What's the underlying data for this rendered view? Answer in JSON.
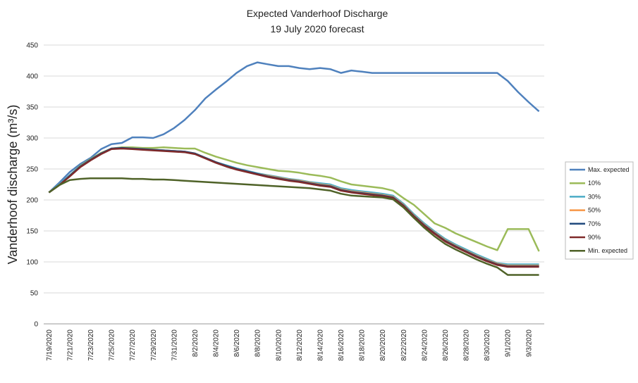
{
  "chart_data": {
    "type": "line",
    "title": "Expected Vanderhoof Discharge",
    "subtitle": "19 July 2020 forecast",
    "y_label": "Vanderhoof discharge (m³/s)",
    "categories": [
      "7/19/2020",
      null,
      "7/21/2020",
      null,
      "7/23/2020",
      null,
      "7/25/2020",
      null,
      "7/27/2020",
      null,
      "7/29/2020",
      null,
      "7/31/2020",
      null,
      "8/2/2020",
      null,
      "8/4/2020",
      null,
      "8/6/2020",
      null,
      "8/8/2020",
      null,
      "8/10/2020",
      null,
      "8/12/2020",
      null,
      "8/14/2020",
      null,
      "8/16/2020",
      null,
      "8/18/2020",
      null,
      "8/20/2020",
      null,
      "8/22/2020",
      null,
      "8/24/2020",
      null,
      "8/26/2020",
      null,
      "8/28/2020",
      null,
      "8/30/2020",
      null,
      "9/1/2020",
      null,
      "9/3/2020",
      null
    ],
    "series": [
      {
        "name": "Max. expected",
        "color": "#4f81bd",
        "values": [
          212,
          228,
          245,
          258,
          268,
          282,
          290,
          292,
          301,
          301,
          300,
          306,
          316,
          329,
          345,
          364,
          378,
          391,
          405,
          416,
          422,
          419,
          416,
          416,
          413,
          411,
          413,
          411,
          405,
          409,
          407,
          405,
          405,
          405,
          405,
          405,
          405,
          405,
          405,
          405,
          405,
          405,
          405,
          405,
          392,
          374,
          358,
          343
        ]
      },
      {
        "name": "10%",
        "color": "#9bbb59",
        "values": [
          212,
          225,
          240,
          255,
          266,
          276,
          283,
          285,
          285,
          284,
          284,
          285,
          284,
          283,
          283,
          276,
          270,
          265,
          260,
          256,
          253,
          250,
          247,
          246,
          244,
          241,
          239,
          236,
          230,
          225,
          223,
          221,
          219,
          215,
          203,
          192,
          177,
          162,
          155,
          146,
          139,
          132,
          125,
          119,
          153,
          153,
          153,
          117
        ]
      },
      {
        "name": "30%",
        "color": "#4bacc6",
        "values": [
          212,
          225,
          240,
          254,
          265,
          275,
          283,
          284,
          283,
          282,
          281,
          280,
          279,
          278,
          275,
          268,
          261,
          256,
          251,
          247,
          243,
          240,
          237,
          234,
          232,
          229,
          227,
          225,
          219,
          216,
          214,
          212,
          210,
          207,
          194,
          177,
          162,
          149,
          137,
          128,
          120,
          112,
          105,
          98,
          96,
          96,
          96,
          96
        ]
      },
      {
        "name": "50%",
        "color": "#f79646",
        "values": [
          212,
          224,
          239,
          254,
          265,
          275,
          283,
          284,
          283,
          282,
          281,
          280,
          279,
          278,
          275,
          268,
          261,
          255,
          250,
          246,
          242,
          239,
          236,
          233,
          231,
          228,
          225,
          223,
          217,
          214,
          212,
          210,
          208,
          205,
          192,
          175,
          160,
          147,
          135,
          126,
          118,
          110,
          103,
          97,
          94,
          94,
          94,
          94
        ]
      },
      {
        "name": "70%",
        "color": "#1f497d",
        "values": [
          212,
          224,
          239,
          254,
          265,
          275,
          283,
          284,
          283,
          282,
          281,
          280,
          279,
          278,
          275,
          268,
          261,
          255,
          250,
          246,
          242,
          238,
          235,
          232,
          230,
          227,
          224,
          222,
          216,
          213,
          211,
          209,
          207,
          204,
          191,
          174,
          159,
          146,
          134,
          125,
          117,
          109,
          102,
          96,
          93,
          93,
          93,
          93
        ]
      },
      {
        "name": "90%",
        "color": "#7f2a2a",
        "values": [
          212,
          224,
          238,
          253,
          264,
          274,
          282,
          283,
          282,
          281,
          280,
          279,
          278,
          277,
          274,
          267,
          260,
          254,
          249,
          245,
          241,
          237,
          234,
          231,
          229,
          226,
          223,
          221,
          215,
          212,
          210,
          208,
          206,
          203,
          190,
          173,
          158,
          145,
          133,
          124,
          116,
          108,
          101,
          95,
          92,
          92,
          92,
          92
        ]
      },
      {
        "name": "Min. expected",
        "color": "#4f6228",
        "values": [
          212,
          224,
          232,
          234,
          235,
          235,
          235,
          235,
          234,
          234,
          233,
          233,
          232,
          231,
          230,
          229,
          228,
          227,
          226,
          225,
          224,
          223,
          222,
          221,
          220,
          219,
          217,
          215,
          210,
          207,
          206,
          205,
          204,
          201,
          188,
          171,
          155,
          141,
          129,
          120,
          112,
          104,
          97,
          91,
          79,
          79,
          79,
          79
        ]
      }
    ],
    "ylim": [
      0,
      450
    ],
    "yticks": [
      0,
      50,
      100,
      150,
      200,
      250,
      300,
      350,
      400,
      450
    ],
    "grid": true,
    "legend": "right"
  }
}
